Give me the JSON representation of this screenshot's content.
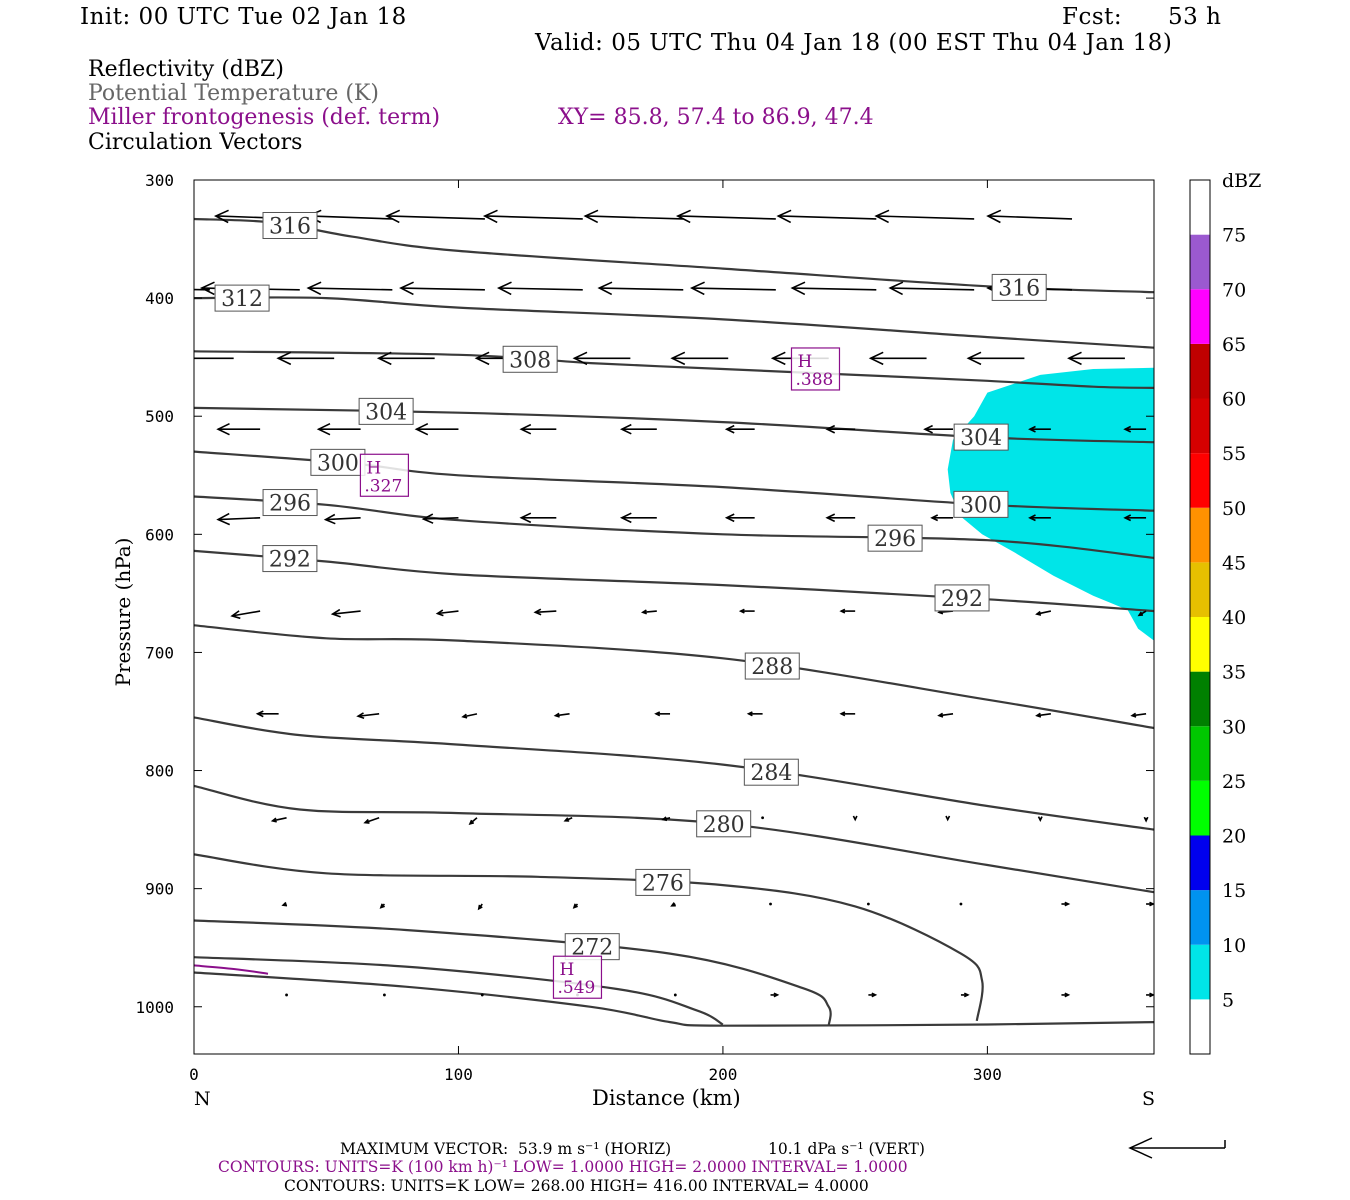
{
  "header": {
    "init": "Init: 00 UTC Tue 02 Jan 18",
    "fcst_label": "Fcst:",
    "fcst_value": "53 h",
    "valid": "Valid: 05 UTC Thu 04 Jan 18 (00 EST Thu 04 Jan 18)"
  },
  "legend": {
    "reflectivity": "Reflectivity (dBZ)",
    "potential_temperature": "Potential Temperature (K)",
    "frontogenesis": "Miller frontogenesis (def. term)",
    "xy": "XY=  85.8, 57.4 to  86.9, 47.4",
    "circulation": "Circulation Vectors"
  },
  "colors": {
    "theta_contour": "#3a3a3a",
    "frontogenesis": "#8b0f8b",
    "vector": "#000000",
    "reflectivity_fill": "#00e5e8"
  },
  "chart_data": {
    "type": "cross-section",
    "xlabel": "Distance (km)",
    "ylabel": "Pressure (hPa)",
    "xlim": [
      0,
      363
    ],
    "ylim": [
      300,
      1040
    ],
    "x_ticks": [
      0,
      100,
      200,
      300
    ],
    "y_ticks": [
      300,
      400,
      500,
      600,
      700,
      800,
      900,
      1000
    ],
    "x_end_labels": {
      "left": "N",
      "right": "S"
    },
    "theta_contours": [
      {
        "label": "316",
        "points": [
          [
            0,
            333
          ],
          [
            30,
            336
          ],
          [
            60,
            348
          ],
          [
            100,
            360
          ],
          [
            200,
            375
          ],
          [
            300,
            390
          ],
          [
            363,
            395
          ]
        ]
      },
      {
        "label": "312",
        "points": [
          [
            0,
            400
          ],
          [
            50,
            400
          ],
          [
            100,
            408
          ],
          [
            200,
            418
          ],
          [
            300,
            433
          ],
          [
            363,
            442
          ]
        ]
      },
      {
        "label": "308",
        "points": [
          [
            0,
            445
          ],
          [
            100,
            448
          ],
          [
            150,
            455
          ],
          [
            200,
            460
          ],
          [
            250,
            465
          ],
          [
            300,
            470
          ],
          [
            340,
            475
          ],
          [
            363,
            476
          ]
        ]
      },
      {
        "label": "304",
        "points": [
          [
            0,
            493
          ],
          [
            100,
            497
          ],
          [
            200,
            505
          ],
          [
            300,
            518
          ],
          [
            363,
            522
          ]
        ]
      },
      {
        "label": "300",
        "points": [
          [
            0,
            530
          ],
          [
            60,
            540
          ],
          [
            100,
            550
          ],
          [
            200,
            560
          ],
          [
            300,
            575
          ],
          [
            363,
            580
          ]
        ]
      },
      {
        "label": "296",
        "points": [
          [
            0,
            568
          ],
          [
            50,
            575
          ],
          [
            100,
            588
          ],
          [
            200,
            600
          ],
          [
            300,
            605
          ],
          [
            363,
            620
          ]
        ]
      },
      {
        "label": "292",
        "points": [
          [
            0,
            614
          ],
          [
            50,
            623
          ],
          [
            100,
            634
          ],
          [
            200,
            643
          ],
          [
            300,
            655
          ],
          [
            363,
            665
          ]
        ]
      },
      {
        "label": "288",
        "points": [
          [
            0,
            677
          ],
          [
            50,
            688
          ],
          [
            100,
            690
          ],
          [
            200,
            705
          ],
          [
            300,
            740
          ],
          [
            363,
            764
          ]
        ]
      },
      {
        "label": "284",
        "points": [
          [
            0,
            755
          ],
          [
            40,
            770
          ],
          [
            100,
            778
          ],
          [
            200,
            795
          ],
          [
            300,
            830
          ],
          [
            363,
            850
          ]
        ]
      },
      {
        "label": "280",
        "points": [
          [
            0,
            813
          ],
          [
            40,
            833
          ],
          [
            100,
            836
          ],
          [
            200,
            845
          ],
          [
            300,
            880
          ],
          [
            363,
            903
          ]
        ]
      },
      {
        "label": "276",
        "points": [
          [
            0,
            871
          ],
          [
            50,
            887
          ],
          [
            130,
            890
          ],
          [
            200,
            897
          ],
          [
            250,
            915
          ],
          [
            290,
            955
          ],
          [
            298,
            978
          ],
          [
            296,
            1012
          ]
        ]
      },
      {
        "label": "272",
        "points": [
          [
            0,
            927
          ],
          [
            80,
            935
          ],
          [
            180,
            955
          ],
          [
            230,
            984
          ],
          [
            240,
            1000
          ],
          [
            240,
            1016
          ]
        ]
      },
      {
        "label": "",
        "points": [
          [
            0,
            958
          ],
          [
            80,
            966
          ],
          [
            160,
            985
          ],
          [
            190,
            1003
          ],
          [
            200,
            1015
          ]
        ]
      },
      {
        "label": "",
        "points": [
          [
            0,
            971
          ],
          [
            80,
            983
          ],
          [
            150,
            1000
          ],
          [
            180,
            1013
          ],
          [
            200,
            1016
          ],
          [
            300,
            1015
          ],
          [
            363,
            1013
          ]
        ]
      }
    ],
    "frontogenesis_maxima": [
      {
        "label": "H",
        "value": ".388",
        "x": 235,
        "y": 460
      },
      {
        "label": "H",
        "value": ".327",
        "x": 72,
        "y": 550
      },
      {
        "label": "H",
        "value": ".549",
        "x": 145,
        "y": 975
      }
    ],
    "frontogenesis_contours": [
      {
        "points": [
          [
            0,
            965
          ],
          [
            15,
            968
          ],
          [
            28,
            972
          ]
        ]
      }
    ],
    "reflectivity_regions": [
      {
        "dbz": 5,
        "points": [
          [
            363,
            459
          ],
          [
            340,
            460
          ],
          [
            320,
            465
          ],
          [
            300,
            480
          ],
          [
            295,
            500
          ],
          [
            287,
            520
          ],
          [
            285,
            545
          ],
          [
            286,
            565
          ],
          [
            290,
            585
          ],
          [
            298,
            600
          ],
          [
            310,
            615
          ],
          [
            325,
            635
          ],
          [
            340,
            652
          ],
          [
            353,
            664
          ],
          [
            357,
            680
          ],
          [
            363,
            690
          ]
        ]
      }
    ],
    "colorbar": {
      "unit": "dBZ",
      "levels": [
        5,
        10,
        15,
        20,
        25,
        30,
        35,
        40,
        45,
        50,
        55,
        60,
        65,
        70,
        75
      ],
      "colors": [
        "#ffffff",
        "#00e5e8",
        "#0093f0",
        "#0000ee",
        "#00ff00",
        "#00c800",
        "#008000",
        "#ffff00",
        "#e6c000",
        "#ff9100",
        "#ff0000",
        "#d60000",
        "#c00000",
        "#ff00ff",
        "#9b59d0",
        "#ffffff"
      ]
    },
    "vectors": [
      {
        "p": 333,
        "x": [
          0,
          40,
          75,
          110,
          147,
          185,
          220,
          258,
          295,
          332
        ],
        "u": [
          -10,
          -12,
          -12,
          -14,
          -14,
          -14,
          -14,
          -14,
          -14,
          -12
        ],
        "w": [
          -0.5,
          -0.5,
          -0.5,
          -0.5,
          -0.5,
          -0.5,
          -0.5,
          -0.5,
          -0.5,
          -0.5
        ]
      },
      {
        "p": 393,
        "x": [
          6,
          40,
          75,
          110,
          147,
          185,
          220,
          258,
          295,
          332
        ],
        "u": [
          -14,
          -14,
          -12,
          -12,
          -12,
          -12,
          -12,
          -12,
          -12,
          -12
        ],
        "w": [
          -0.3,
          -0.3,
          -0.3,
          -0.3,
          -0.3,
          -0.3,
          -0.3,
          -0.3,
          -0.3,
          -0.3
        ]
      },
      {
        "p": 451,
        "x": [
          15,
          53,
          91,
          128,
          165,
          202,
          240,
          277,
          314,
          352
        ],
        "u": [
          -8,
          -8,
          -8,
          -8,
          -8,
          -8,
          -8,
          -8,
          -8,
          -8
        ],
        "w": [
          0,
          0,
          0,
          0,
          0,
          0,
          0,
          0,
          0,
          0
        ]
      },
      {
        "p": 511,
        "x": [
          25,
          63,
          100,
          137,
          175,
          212,
          250,
          287,
          324,
          360
        ],
        "u": [
          -6,
          -6,
          -6,
          -5,
          -5,
          -4,
          -4,
          -4,
          -3,
          -3
        ],
        "w": [
          0,
          0,
          0,
          0,
          0,
          0,
          0,
          0,
          0,
          0
        ]
      },
      {
        "p": 586,
        "x": [
          25,
          63,
          100,
          137,
          175,
          212,
          250,
          287,
          324,
          360
        ],
        "u": [
          -6,
          -5,
          -5,
          -5,
          -5,
          -4,
          -4,
          -3,
          -3,
          -3
        ],
        "w": [
          0.3,
          0.3,
          0.2,
          0,
          0,
          0,
          0,
          0,
          0,
          0
        ]
      },
      {
        "p": 665,
        "x": [
          25,
          63,
          100,
          137,
          175,
          212,
          250,
          287,
          324,
          360
        ],
        "u": [
          -4,
          -4,
          -3,
          -3,
          -2,
          -2,
          -2,
          -2,
          -2,
          -1
        ],
        "w": [
          0.8,
          0.5,
          0.4,
          0.2,
          0.2,
          0,
          0,
          0.2,
          0.5,
          0.7
        ]
      },
      {
        "p": 752,
        "x": [
          32,
          70,
          107,
          142,
          180,
          215,
          250,
          287,
          324,
          360
        ],
        "u": [
          -3,
          -3,
          -2,
          -2,
          -2,
          -2,
          -2,
          -2,
          -2,
          -2
        ],
        "w": [
          0,
          0.4,
          0.5,
          0.3,
          0,
          0,
          0,
          0.3,
          0.3,
          0.3
        ]
      },
      {
        "p": 840,
        "x": [
          35,
          70,
          107,
          143,
          180,
          215,
          250,
          285,
          320,
          360
        ],
        "u": [
          -2,
          -2,
          -1,
          -1,
          -1,
          0,
          0,
          0,
          0,
          0
        ],
        "w": [
          0.5,
          0.8,
          1.0,
          0.5,
          0.3,
          0,
          0.3,
          0.3,
          0.4,
          0.5
        ]
      },
      {
        "p": 913,
        "x": [
          35,
          72,
          109,
          145,
          182,
          218,
          255,
          290,
          328,
          360
        ],
        "u": [
          -0.5,
          -0.5,
          -0.5,
          -0.5,
          -0.5,
          0,
          0,
          0,
          1,
          1
        ],
        "w": [
          0.2,
          0.6,
          0.8,
          0.6,
          0.3,
          0,
          0,
          0,
          0,
          0
        ]
      },
      {
        "p": 990,
        "x": [
          35,
          72,
          109,
          145,
          182,
          218,
          255,
          290,
          328,
          360
        ],
        "u": [
          0,
          0,
          0,
          0,
          0,
          1,
          1,
          1,
          1,
          1
        ],
        "w": [
          0,
          0,
          0,
          0,
          0,
          0,
          0,
          0,
          0,
          0
        ]
      }
    ]
  },
  "footer": {
    "max_vector_label": "MAXIMUM VECTOR:",
    "max_vector_horiz": "53.9 m s⁻¹ (HORIZ)",
    "max_vector_vert": "10.1 dPa s⁻¹ (VERT)",
    "contours1": "CONTOURS:  UNITS=K (100 km h)⁻¹  LOW=   1.0000       HIGH=  2.0000      INTERVAL=    1.0000",
    "contours2": "CONTOURS:  UNITS=K  LOW=  268.00        HIGH=  416.00        INTERVAL=    4.0000"
  }
}
